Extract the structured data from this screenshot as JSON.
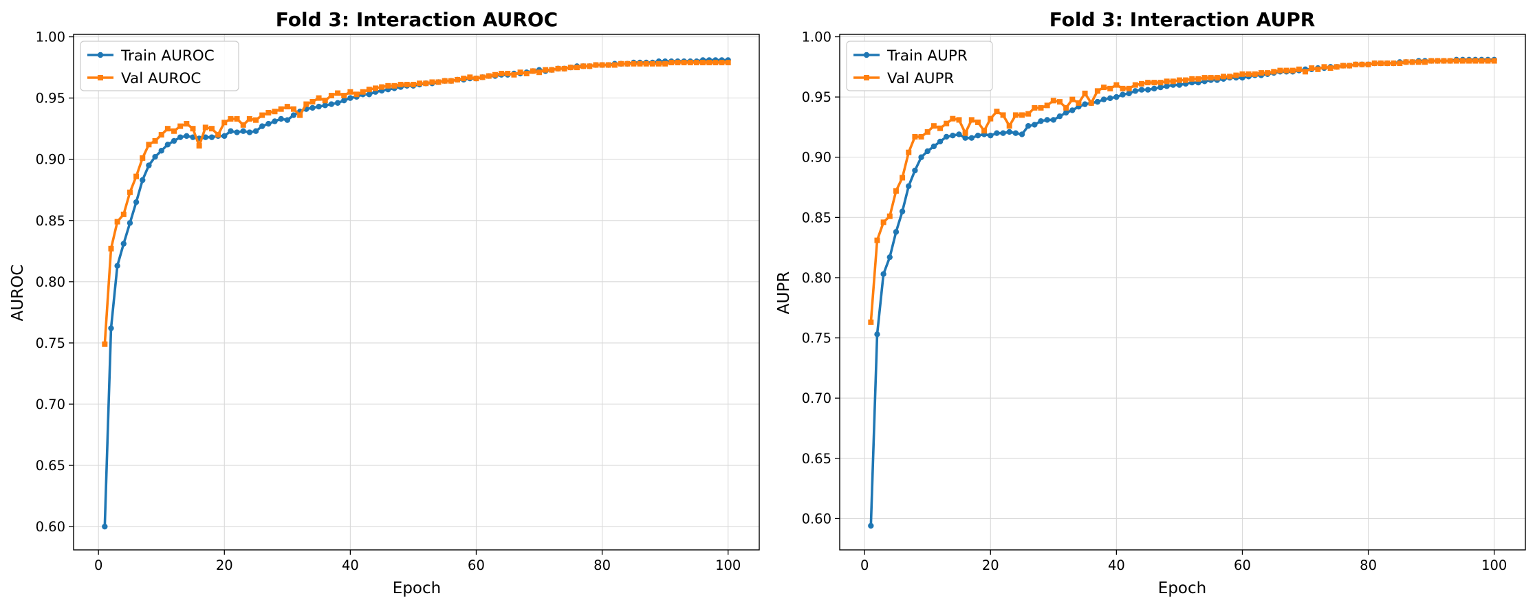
{
  "chart_data": [
    {
      "type": "line",
      "title": "Fold 3: Interaction AUROC",
      "xlabel": "Epoch",
      "ylabel": "AUROC",
      "xlim": [
        -3.95,
        104.95
      ],
      "ylim": [
        0.581,
        1.002
      ],
      "x_ticks": [
        0,
        20,
        40,
        60,
        80,
        100
      ],
      "y_ticks": [
        0.6,
        0.65,
        0.7,
        0.75,
        0.8,
        0.85,
        0.9,
        0.95,
        1.0
      ],
      "x_tick_labels": [
        "0",
        "20",
        "40",
        "60",
        "80",
        "100"
      ],
      "y_tick_labels": [
        "0.60",
        "0.65",
        "0.70",
        "0.75",
        "0.80",
        "0.85",
        "0.90",
        "0.95",
        "1.00"
      ],
      "grid": true,
      "legend_position": "upper-left",
      "x_start": 1,
      "series": [
        {
          "name": "Train AUROC",
          "color": "#1f77b4",
          "marker": "circle",
          "values": [
            0.6,
            0.762,
            0.813,
            0.831,
            0.848,
            0.865,
            0.883,
            0.895,
            0.902,
            0.907,
            0.912,
            0.915,
            0.918,
            0.919,
            0.918,
            0.917,
            0.918,
            0.918,
            0.919,
            0.919,
            0.923,
            0.922,
            0.923,
            0.922,
            0.923,
            0.927,
            0.929,
            0.931,
            0.933,
            0.932,
            0.936,
            0.939,
            0.941,
            0.942,
            0.943,
            0.944,
            0.945,
            0.946,
            0.948,
            0.95,
            0.951,
            0.953,
            0.953,
            0.955,
            0.956,
            0.957,
            0.958,
            0.959,
            0.96,
            0.96,
            0.961,
            0.962,
            0.962,
            0.963,
            0.964,
            0.964,
            0.965,
            0.965,
            0.966,
            0.966,
            0.967,
            0.968,
            0.968,
            0.969,
            0.969,
            0.97,
            0.97,
            0.971,
            0.972,
            0.973,
            0.972,
            0.973,
            0.974,
            0.974,
            0.975,
            0.976,
            0.976,
            0.976,
            0.977,
            0.977,
            0.977,
            0.978,
            0.978,
            0.978,
            0.979,
            0.979,
            0.979,
            0.979,
            0.98,
            0.98,
            0.98,
            0.98,
            0.98,
            0.98,
            0.98,
            0.981,
            0.981,
            0.981,
            0.981,
            0.981
          ]
        },
        {
          "name": "Val AUROC",
          "color": "#ff7f0e",
          "marker": "square",
          "values": [
            0.749,
            0.827,
            0.849,
            0.855,
            0.873,
            0.886,
            0.901,
            0.912,
            0.915,
            0.92,
            0.925,
            0.923,
            0.927,
            0.929,
            0.925,
            0.911,
            0.926,
            0.925,
            0.92,
            0.93,
            0.933,
            0.933,
            0.928,
            0.933,
            0.932,
            0.936,
            0.938,
            0.939,
            0.941,
            0.943,
            0.941,
            0.936,
            0.945,
            0.947,
            0.95,
            0.948,
            0.952,
            0.954,
            0.952,
            0.955,
            0.953,
            0.955,
            0.957,
            0.958,
            0.959,
            0.96,
            0.96,
            0.961,
            0.961,
            0.961,
            0.962,
            0.962,
            0.963,
            0.963,
            0.964,
            0.964,
            0.965,
            0.966,
            0.967,
            0.966,
            0.967,
            0.968,
            0.969,
            0.97,
            0.97,
            0.969,
            0.971,
            0.97,
            0.972,
            0.971,
            0.973,
            0.973,
            0.974,
            0.974,
            0.975,
            0.975,
            0.976,
            0.976,
            0.977,
            0.977,
            0.977,
            0.977,
            0.978,
            0.978,
            0.978,
            0.978,
            0.978,
            0.978,
            0.978,
            0.978,
            0.979,
            0.979,
            0.979,
            0.979,
            0.979,
            0.979,
            0.979,
            0.979,
            0.979,
            0.979
          ]
        }
      ]
    },
    {
      "type": "line",
      "title": "Fold 3: Interaction AUPR",
      "xlabel": "Epoch",
      "ylabel": "AUPR",
      "xlim": [
        -3.95,
        104.95
      ],
      "ylim": [
        0.574,
        1.002
      ],
      "x_ticks": [
        0,
        20,
        40,
        60,
        80,
        100
      ],
      "y_ticks": [
        0.6,
        0.65,
        0.7,
        0.75,
        0.8,
        0.85,
        0.9,
        0.95,
        1.0
      ],
      "x_tick_labels": [
        "0",
        "20",
        "40",
        "60",
        "80",
        "100"
      ],
      "y_tick_labels": [
        "0.60",
        "0.65",
        "0.70",
        "0.75",
        "0.80",
        "0.85",
        "0.90",
        "0.95",
        "1.00"
      ],
      "grid": true,
      "legend_position": "upper-left",
      "x_start": 1,
      "series": [
        {
          "name": "Train AUPR",
          "color": "#1f77b4",
          "marker": "circle",
          "values": [
            0.594,
            0.753,
            0.803,
            0.817,
            0.838,
            0.855,
            0.876,
            0.889,
            0.9,
            0.905,
            0.909,
            0.913,
            0.917,
            0.918,
            0.919,
            0.916,
            0.916,
            0.918,
            0.919,
            0.918,
            0.92,
            0.92,
            0.921,
            0.92,
            0.919,
            0.926,
            0.927,
            0.93,
            0.931,
            0.931,
            0.934,
            0.937,
            0.939,
            0.942,
            0.944,
            0.945,
            0.946,
            0.948,
            0.949,
            0.95,
            0.952,
            0.953,
            0.955,
            0.956,
            0.956,
            0.957,
            0.958,
            0.959,
            0.96,
            0.96,
            0.961,
            0.962,
            0.962,
            0.963,
            0.964,
            0.964,
            0.965,
            0.966,
            0.966,
            0.966,
            0.967,
            0.968,
            0.968,
            0.969,
            0.97,
            0.971,
            0.971,
            0.971,
            0.972,
            0.973,
            0.973,
            0.974,
            0.974,
            0.975,
            0.975,
            0.976,
            0.976,
            0.977,
            0.977,
            0.977,
            0.978,
            0.978,
            0.978,
            0.978,
            0.979,
            0.979,
            0.979,
            0.98,
            0.98,
            0.98,
            0.98,
            0.98,
            0.98,
            0.981,
            0.981,
            0.981,
            0.981,
            0.981,
            0.981,
            0.981
          ]
        },
        {
          "name": "Val AUPR",
          "color": "#ff7f0e",
          "marker": "square",
          "values": [
            0.763,
            0.831,
            0.846,
            0.851,
            0.872,
            0.883,
            0.904,
            0.917,
            0.917,
            0.921,
            0.926,
            0.924,
            0.928,
            0.932,
            0.931,
            0.92,
            0.931,
            0.929,
            0.922,
            0.932,
            0.938,
            0.935,
            0.926,
            0.935,
            0.935,
            0.936,
            0.941,
            0.941,
            0.943,
            0.947,
            0.946,
            0.941,
            0.948,
            0.945,
            0.953,
            0.945,
            0.955,
            0.958,
            0.957,
            0.96,
            0.957,
            0.957,
            0.96,
            0.961,
            0.962,
            0.962,
            0.962,
            0.963,
            0.963,
            0.964,
            0.964,
            0.965,
            0.965,
            0.966,
            0.966,
            0.966,
            0.967,
            0.967,
            0.968,
            0.969,
            0.969,
            0.969,
            0.97,
            0.97,
            0.971,
            0.972,
            0.972,
            0.972,
            0.973,
            0.971,
            0.974,
            0.973,
            0.975,
            0.974,
            0.975,
            0.976,
            0.976,
            0.977,
            0.977,
            0.977,
            0.978,
            0.978,
            0.978,
            0.978,
            0.978,
            0.979,
            0.979,
            0.979,
            0.979,
            0.98,
            0.98,
            0.98,
            0.98,
            0.98,
            0.98,
            0.98,
            0.98,
            0.98,
            0.98,
            0.98
          ]
        }
      ]
    }
  ]
}
